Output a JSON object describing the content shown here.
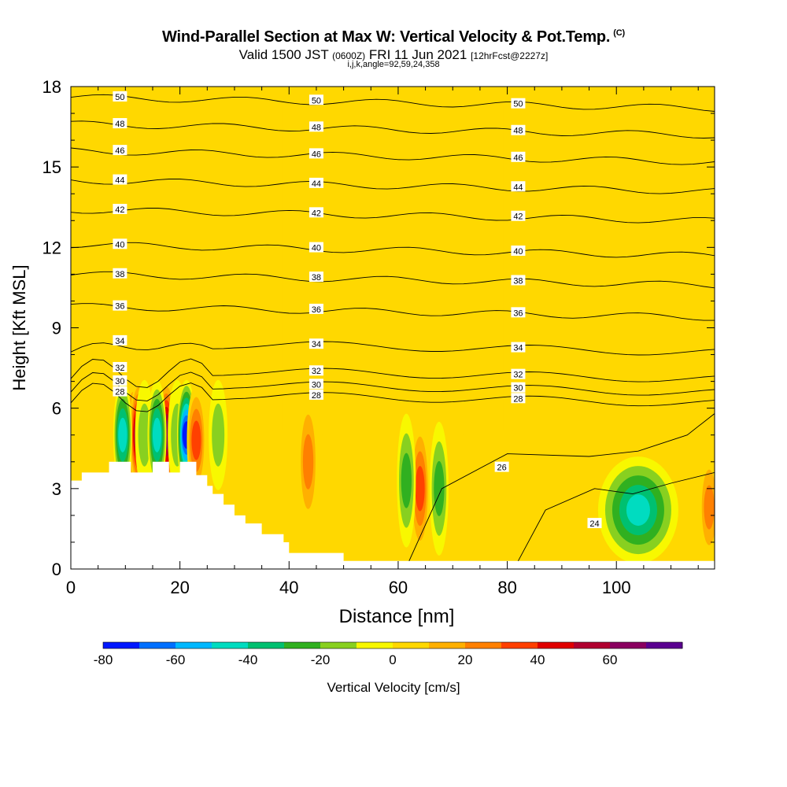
{
  "header": {
    "title": "Wind-Parallel Section at Max W: Vertical Velocity & Pot.Temp.",
    "copyright": "(C)",
    "valid_prefix": "Valid 1500 JST",
    "valid_utc": "(0600Z)",
    "valid_date": "FRI 11 Jun 2021",
    "forecast": "[12hrFcst@2227z]",
    "params": "i,j,k,angle=92,59,24,358"
  },
  "chart_data": {
    "type": "heatmap",
    "xlabel": "Distance [nm]",
    "ylabel": "Height [Kft MSL]",
    "xlim": [
      0,
      118
    ],
    "ylim": [
      0,
      18
    ],
    "x_ticks": [
      0,
      20,
      40,
      60,
      80,
      100
    ],
    "y_ticks": [
      0,
      3,
      6,
      9,
      12,
      15,
      18
    ],
    "colorbar": {
      "label": "Vertical Velocity [cm/s]",
      "ticks": [
        -80,
        -60,
        -40,
        -20,
        0,
        20,
        40,
        60
      ],
      "levels": [
        -80,
        -70,
        -60,
        -50,
        -40,
        -30,
        -20,
        -10,
        0,
        10,
        20,
        30,
        40,
        50,
        60,
        70
      ],
      "colors": [
        "#0018ff",
        "#0070ff",
        "#00b8ff",
        "#00dcc0",
        "#00c070",
        "#30b020",
        "#88d020",
        "#f8f800",
        "#ffd800",
        "#ffb000",
        "#ff8000",
        "#ff4000",
        "#e00000",
        "#b00030",
        "#8a0060",
        "#5a0090"
      ]
    },
    "terrain_profile": {
      "x": [
        0,
        2,
        2,
        7,
        7,
        11,
        11,
        15,
        15,
        18,
        18,
        20,
        20,
        23,
        23,
        25,
        25,
        26,
        26,
        28,
        28,
        30,
        30,
        32,
        32,
        35,
        35,
        39,
        39,
        40,
        40,
        50,
        50,
        118
      ],
      "height": [
        3.3,
        3.3,
        3.6,
        3.6,
        4.0,
        4.0,
        3.6,
        3.6,
        4.0,
        4.0,
        3.6,
        3.6,
        4.0,
        4.0,
        3.5,
        3.5,
        3.1,
        3.1,
        2.8,
        2.8,
        2.4,
        2.4,
        2.0,
        2.0,
        1.7,
        1.7,
        1.3,
        1.3,
        1.0,
        1.0,
        0.6,
        0.6,
        0.3,
        0.3
      ]
    },
    "velocity_cells": [
      {
        "x": 11.5,
        "y": 5.0,
        "w": 36
      },
      {
        "x": 12.5,
        "y": 5.0,
        "w": 65
      },
      {
        "x": 9.5,
        "y": 5.0,
        "w": -50
      },
      {
        "x": 13.5,
        "y": 5.0,
        "w": -15
      },
      {
        "x": 17.5,
        "y": 5.0,
        "w": 70
      },
      {
        "x": 15.8,
        "y": 5.0,
        "w": -50
      },
      {
        "x": 19.5,
        "y": 5.0,
        "w": -15
      },
      {
        "x": 21.2,
        "y": 5.0,
        "w": -80
      },
      {
        "x": 23.0,
        "y": 4.8,
        "w": 35
      },
      {
        "x": 27.0,
        "y": 5.0,
        "w": -15
      },
      {
        "x": 43.5,
        "y": 4.0,
        "w": 30
      },
      {
        "x": 64.0,
        "y": 3.0,
        "w": 40
      },
      {
        "x": 61.5,
        "y": 3.3,
        "w": -30
      },
      {
        "x": 67.5,
        "y": 3.0,
        "w": -25
      },
      {
        "x": 104.0,
        "y": 2.2,
        "w": -45
      },
      {
        "x": 117.0,
        "y": 2.3,
        "w": 30
      }
    ],
    "theta_contours": [
      {
        "label": "50",
        "y": 17.6
      },
      {
        "label": "48",
        "y": 16.6
      },
      {
        "label": "46",
        "y": 15.6
      },
      {
        "label": "44",
        "y": 14.5
      },
      {
        "label": "42",
        "y": 13.4
      },
      {
        "label": "40",
        "y": 12.1
      },
      {
        "label": "38",
        "y": 11.0
      },
      {
        "label": "36",
        "y": 9.8
      },
      {
        "label": "34",
        "y": 8.5
      },
      {
        "label": "32",
        "y": 7.5
      },
      {
        "label": "30",
        "y": 7.0
      },
      {
        "label": "28",
        "y": 6.6
      },
      {
        "label": "26",
        "y": 3.8
      },
      {
        "label": "24",
        "y": 1.7
      }
    ]
  }
}
